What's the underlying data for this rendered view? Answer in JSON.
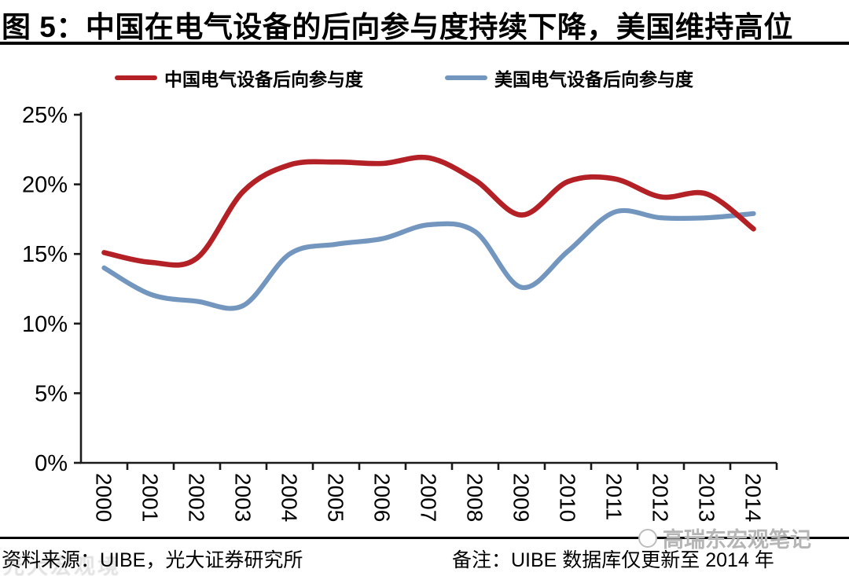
{
  "title": "图 5：中国在电气设备的后向参与度持续下降，美国维持高位",
  "legend": [
    {
      "label": "中国电气设备后向参与度",
      "color": "#b32025"
    },
    {
      "label": "美国电气设备后向参与度",
      "color": "#7396bf"
    }
  ],
  "chart_data": {
    "type": "line",
    "title": "图 5：中国在电气设备的后向参与度持续下降，美国维持高位",
    "categories": [
      "2000",
      "2001",
      "2002",
      "2003",
      "2004",
      "2005",
      "2006",
      "2007",
      "2008",
      "2009",
      "2010",
      "2011",
      "2012",
      "2013",
      "2014"
    ],
    "series": [
      {
        "name": "中国电气设备后向参与度",
        "color": "#b32025",
        "values": [
          15.1,
          14.4,
          14.7,
          19.5,
          21.4,
          21.6,
          21.5,
          21.9,
          20.3,
          17.8,
          20.2,
          20.4,
          19.1,
          19.3,
          16.8
        ]
      },
      {
        "name": "美国电气设备后向参与度",
        "color": "#7396bf",
        "values": [
          14.0,
          12.1,
          11.6,
          11.3,
          15.0,
          15.7,
          16.1,
          17.1,
          16.6,
          12.6,
          15.2,
          18.0,
          17.6,
          17.6,
          17.9
        ]
      }
    ],
    "xlabel": "",
    "ylabel": "",
    "ylim": [
      0,
      25
    ],
    "ytick_labels": [
      "0%",
      "5%",
      "10%",
      "15%",
      "20%",
      "25%"
    ],
    "grid": false,
    "smooth": true,
    "legend_position": "top"
  },
  "footer": {
    "source": "资料来源：UIBE，光大证券研究所",
    "note": "备注：UIBE 数据库仅更新至 2014 年"
  },
  "watermarks": {
    "left": "光大宏观境",
    "right": "高瑞东宏观笔记"
  }
}
